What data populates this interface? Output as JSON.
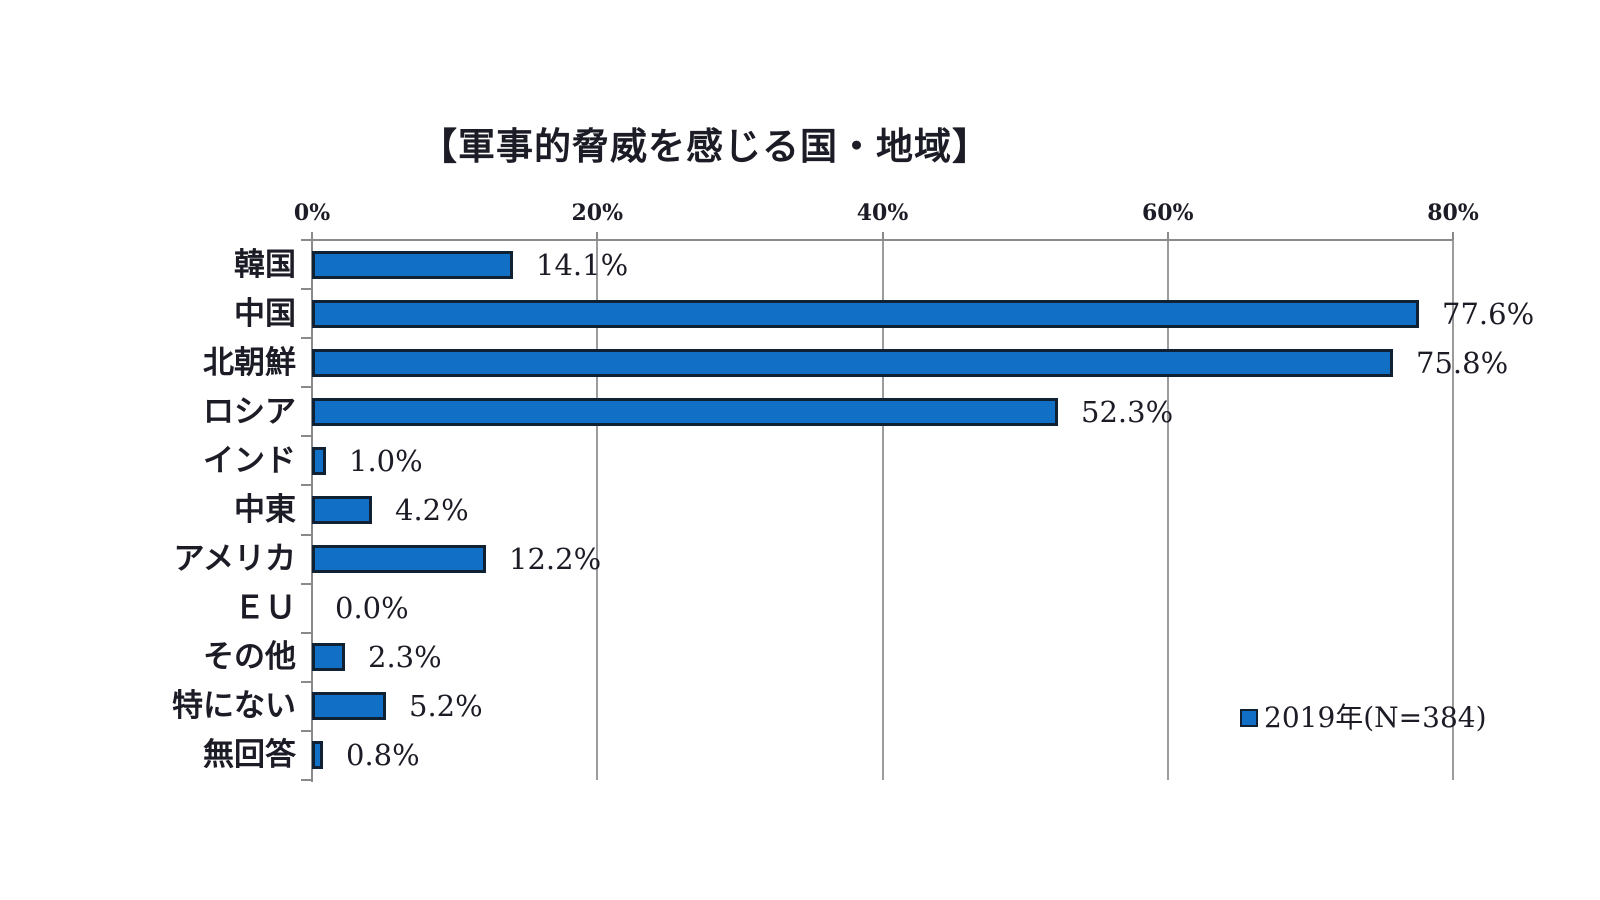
{
  "page": {
    "background_color": "#ffffff"
  },
  "chart_data": {
    "type": "bar",
    "orientation": "horizontal",
    "title": "【軍事的脅威を感じる国・地域】",
    "categories": [
      "韓国",
      "中国",
      "北朝鮮",
      "ロシア",
      "インド",
      "中東",
      "アメリカ",
      "ＥＵ",
      "その他",
      "特にない",
      "無回答"
    ],
    "values": [
      14.1,
      77.6,
      75.8,
      52.3,
      1.0,
      4.2,
      12.2,
      0.0,
      2.3,
      5.2,
      0.8
    ],
    "value_labels": [
      "14.1%",
      "77.6%",
      "75.8%",
      "52.3%",
      "1.0%",
      "4.2%",
      "12.2%",
      "0.0%",
      "2.3%",
      "5.2%",
      "0.8%"
    ],
    "series": [
      {
        "name": "2019年(N=384)",
        "values": [
          14.1,
          77.6,
          75.8,
          52.3,
          1.0,
          4.2,
          12.2,
          0.0,
          2.3,
          5.2,
          0.8
        ]
      }
    ],
    "x_axis": {
      "position": "top",
      "min": 0,
      "max": 80,
      "tick_labels": [
        "0%",
        "20%",
        "40%",
        "60%",
        "80%"
      ]
    },
    "grid": true,
    "legend": {
      "label": "2019年(N=384)",
      "position": "inside-bottom-right"
    },
    "colors": {
      "bar_fill": "#1170c5",
      "bar_border": "#0f2133",
      "gridline": "#9c9c9c",
      "axis": "#8a8a8a",
      "text": "#1c1c26"
    }
  }
}
